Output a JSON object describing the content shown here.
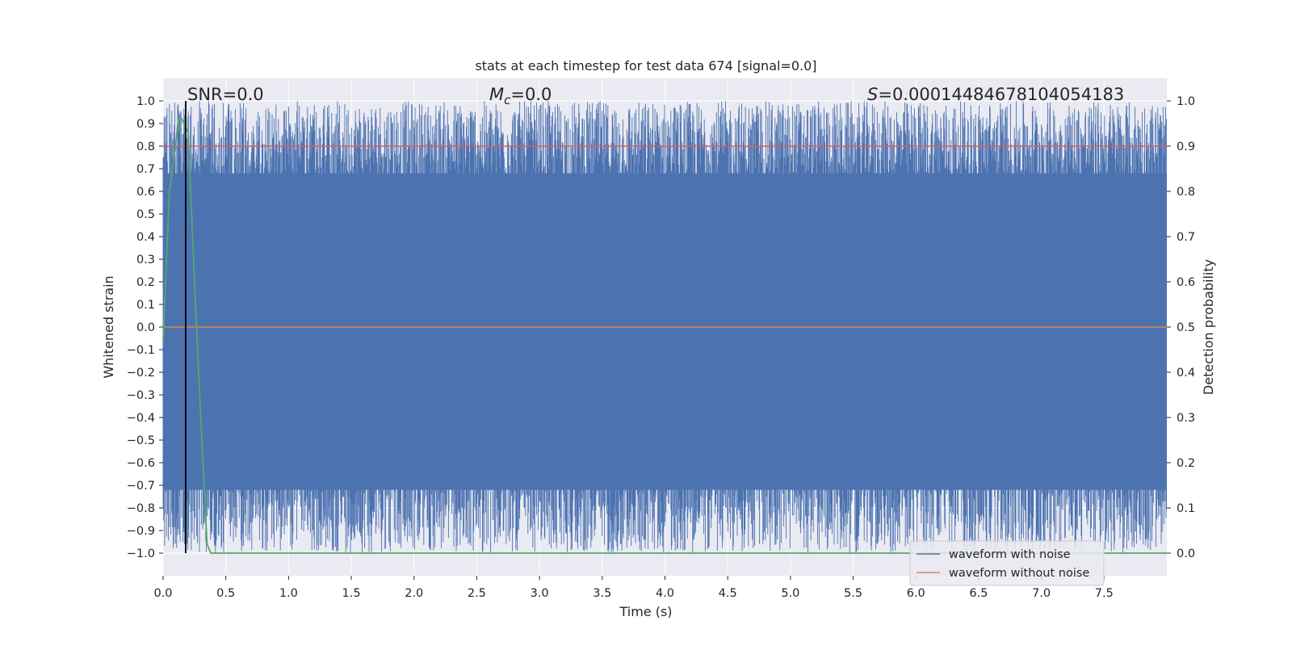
{
  "chart_data": {
    "type": "line",
    "title": "stats at each timestep for test data 674 [signal=0.0]",
    "xlabel": "Time (s)",
    "ylabel": "Whitened strain",
    "y2label": "Detection probability",
    "xlim": [
      0.0,
      8.0
    ],
    "ylim": [
      -1.1,
      1.1
    ],
    "y2lim": [
      -0.05,
      1.05
    ],
    "xticks": [
      "0.0",
      "0.5",
      "1.0",
      "1.5",
      "2.0",
      "2.5",
      "3.0",
      "3.5",
      "4.0",
      "4.5",
      "5.0",
      "5.5",
      "6.0",
      "6.5",
      "7.0",
      "7.5"
    ],
    "yticks": [
      "1.0",
      "0.9",
      "0.8",
      "0.7",
      "0.6",
      "0.5",
      "0.4",
      "0.3",
      "0.2",
      "0.1",
      "0.0",
      "−0.1",
      "−0.2",
      "−0.3",
      "−0.4",
      "−0.5",
      "−0.6",
      "−0.7",
      "−0.8",
      "−0.9",
      "−1.0"
    ],
    "y2ticks": [
      "1.0",
      "0.9",
      "0.8",
      "0.7",
      "0.6",
      "0.5",
      "0.4",
      "0.3",
      "0.2",
      "0.1",
      "0.0"
    ],
    "annotations": {
      "snr": "SNR=0.0",
      "mc_symbol": "M",
      "mc_sub": "c",
      "mc_value": "=0.0",
      "s_symbol": "S",
      "s_value": "=0.00014484678104054183"
    },
    "series": [
      {
        "name": "waveform with noise",
        "color": "#4c72b0",
        "axis": "left",
        "range": [
          -1.0,
          1.0
        ],
        "description_values": "dense whitened noise spanning approx -1.0 to 1.0 over 0-8 s"
      },
      {
        "name": "waveform without noise",
        "color": "#dd8452",
        "axis": "left",
        "x": [
          0.0,
          8.0
        ],
        "y": [
          0.0,
          0.0
        ]
      },
      {
        "color": "#55a868",
        "axis": "right",
        "x": [
          0.0,
          0.05,
          0.1,
          0.12,
          0.15,
          0.18,
          0.2,
          0.25,
          0.3,
          0.35,
          0.38,
          0.4,
          8.0
        ],
        "y": [
          0.47,
          0.8,
          0.9,
          0.96,
          0.96,
          0.94,
          0.93,
          0.6,
          0.3,
          0.02,
          0.0,
          0.0,
          0.0
        ]
      },
      {
        "color": "#d65f5f",
        "axis": "right",
        "x": [
          0.0,
          8.0
        ],
        "y": [
          0.9,
          0.9
        ]
      }
    ],
    "vline": {
      "x": 0.18,
      "color": "#000000"
    },
    "legend_placement": "lower-right",
    "grid": true,
    "style": {
      "background": "#eaeaf2",
      "grid_color": "#ffffff"
    }
  }
}
